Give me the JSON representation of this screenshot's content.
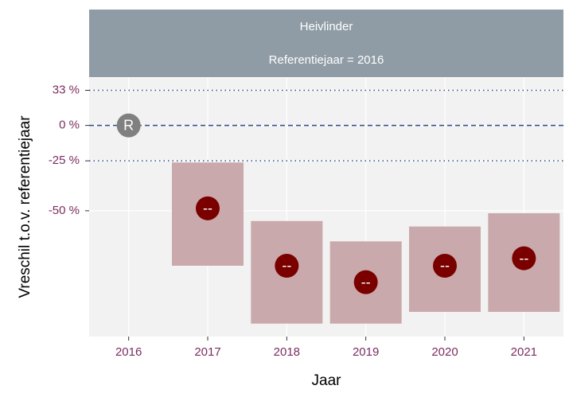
{
  "chart_data": {
    "type": "point-interval",
    "strip": [
      "Heivlinder",
      "Referentiejaar = 2016"
    ],
    "xlabel": "Jaar",
    "ylabel": "Vreschil t.o.v. referentiejaar",
    "categories": [
      "2016",
      "2017",
      "2018",
      "2019",
      "2020",
      "2021"
    ],
    "values": [
      0,
      -49,
      -68,
      -72,
      -68,
      -66
    ],
    "value_labels": [
      "R",
      "--",
      "--",
      "--",
      "--",
      "--"
    ],
    "lower": [
      null,
      -68,
      -80,
      -80,
      -78,
      -78
    ],
    "upper": [
      null,
      -26,
      -54,
      -61,
      -56,
      -51
    ],
    "y_transform": "log-ratio",
    "ylim": [
      -82,
      47
    ],
    "yticks": [
      {
        "value": 33,
        "label": "33 %"
      },
      {
        "value": 0,
        "label": "0 %"
      },
      {
        "value": -25,
        "label": "-25 %"
      },
      {
        "value": -50,
        "label": "-50 %"
      }
    ],
    "reference_lines": [
      {
        "value": 33,
        "style": "dotted"
      },
      {
        "value": 0,
        "style": "dashed"
      },
      {
        "value": -25,
        "style": "dotted"
      }
    ],
    "reference_color": "#808080",
    "color": "#7a0000",
    "interval_color": "#c9a9ab",
    "grid": true
  }
}
